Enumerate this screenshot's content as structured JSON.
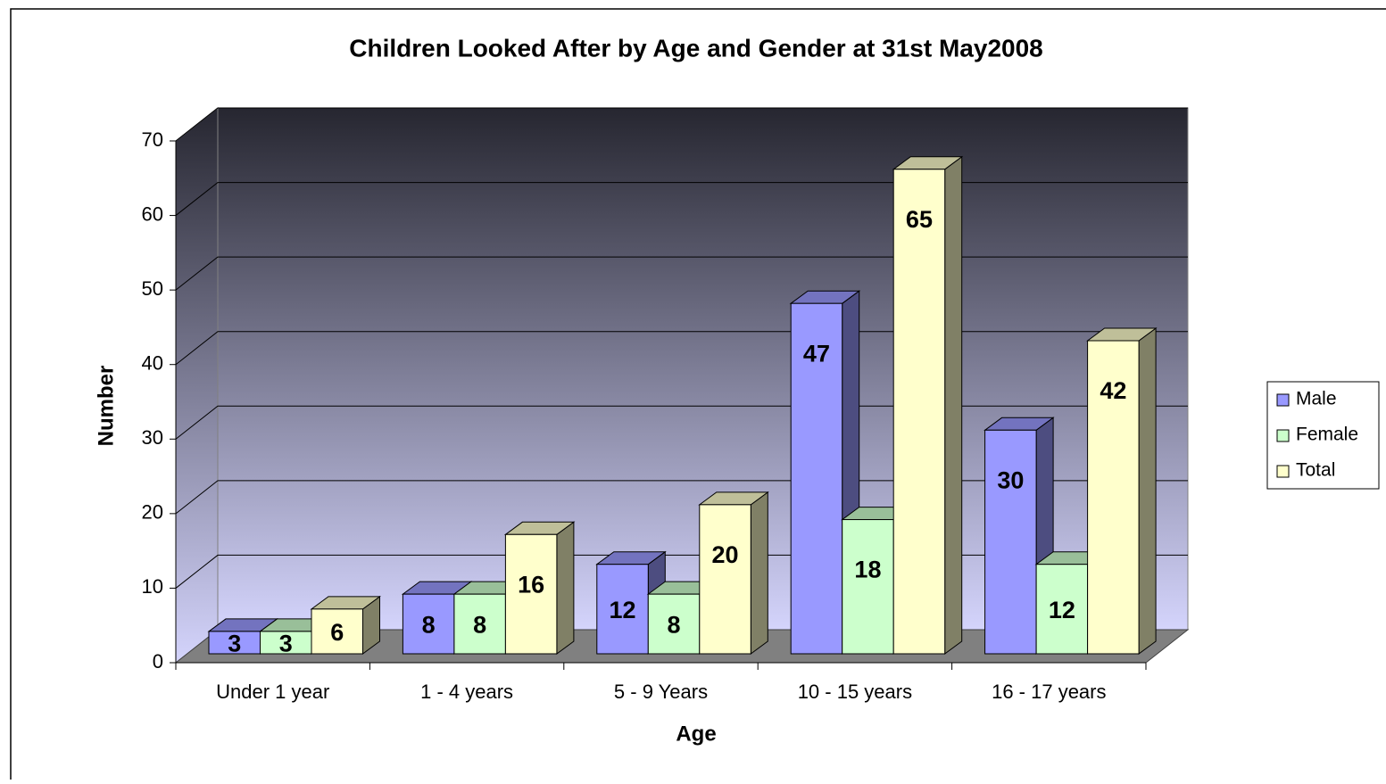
{
  "chart_data": {
    "type": "bar3d",
    "title": "Children Looked After by Age and Gender at 31st May2008",
    "x_label": "Age",
    "y_label": "Number",
    "categories": [
      "Under 1 year",
      "1 - 4 years",
      "5 - 9 Years",
      "10 - 15 years",
      "16 - 17 years"
    ],
    "series": [
      {
        "name": "Male",
        "color": "#9999ff",
        "values": [
          3,
          8,
          12,
          47,
          30
        ]
      },
      {
        "name": "Female",
        "color": "#ccffcc",
        "values": [
          3,
          8,
          8,
          18,
          12
        ]
      },
      {
        "name": "Total",
        "color": "#ffffcc",
        "values": [
          6,
          16,
          20,
          65,
          42
        ]
      }
    ],
    "ylim": [
      0,
      70
    ],
    "yticks": [
      0,
      10,
      20,
      30,
      40,
      50,
      60,
      70
    ],
    "grid": true,
    "legend": "right"
  }
}
